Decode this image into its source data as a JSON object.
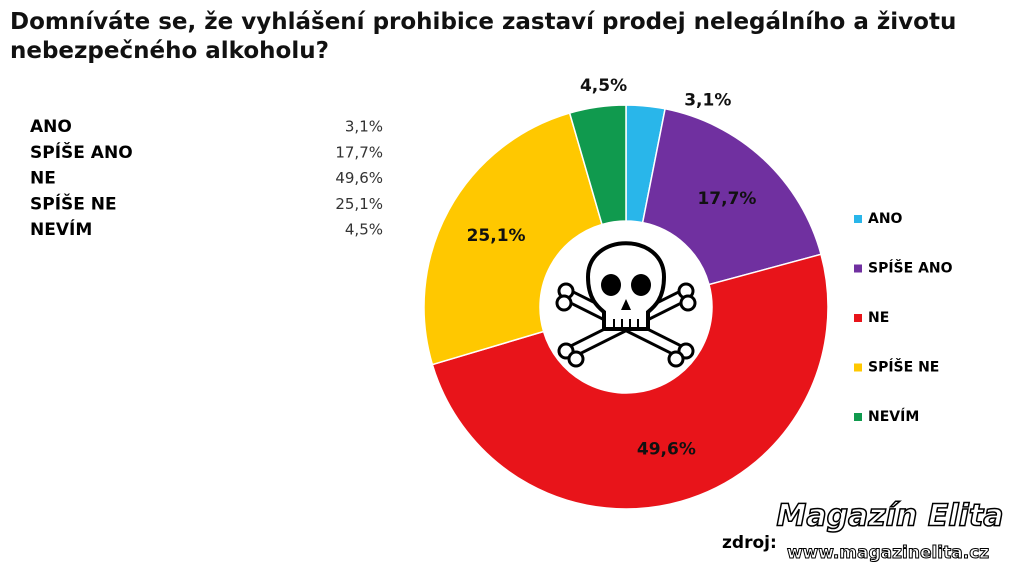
{
  "chart_data": {
    "type": "donut",
    "title": "Domníváte se, že vyhlášení prohibice zastaví prodej nelegálního a životu nebezpečného alkoholu?",
    "categories": [
      "ANO",
      "SPÍŠE ANO",
      "NE",
      "SPÍŠE NE",
      "NEVÍM"
    ],
    "values": [
      3.1,
      17.7,
      49.6,
      25.1,
      4.5
    ],
    "value_labels": [
      "3,1%",
      "17,7%",
      "49,6%",
      "25,1%",
      "4,5%"
    ],
    "colors": [
      "#29b6ea",
      "#7030a0",
      "#e8141a",
      "#ffc800",
      "#109a4e"
    ],
    "legend": "right"
  },
  "footer": {
    "source": "zdroj:",
    "watermark": "Magazín Elita",
    "url": "www.magazinelita.cz"
  }
}
